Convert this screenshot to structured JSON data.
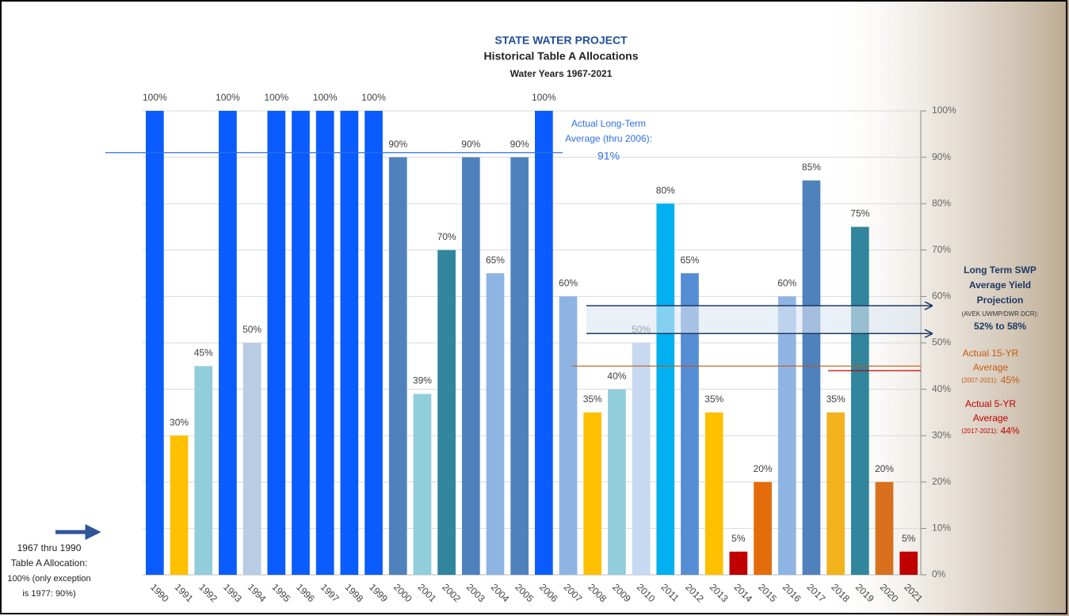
{
  "chart_data": {
    "type": "bar",
    "title": [
      "STATE WATER PROJECT",
      "Historical Table A Allocations",
      "Water Years 1967-2021"
    ],
    "categories": [
      "1990",
      "1991",
      "1992",
      "1993",
      "1994",
      "1995",
      "1996",
      "1997",
      "1998",
      "1999",
      "2000",
      "2001",
      "2002",
      "2003",
      "2004",
      "2005",
      "2006",
      "2007",
      "2008",
      "2009",
      "2010",
      "2011",
      "2012",
      "2013",
      "2014",
      "2015",
      "2016",
      "2017",
      "2018",
      "2019",
      "2020",
      "2021"
    ],
    "values": [
      100,
      30,
      45,
      100,
      50,
      100,
      100,
      100,
      100,
      100,
      90,
      39,
      70,
      90,
      65,
      90,
      100,
      60,
      35,
      40,
      50,
      80,
      65,
      35,
      5,
      20,
      60,
      85,
      35,
      75,
      20,
      5
    ],
    "value_labels": [
      "100%",
      "30%",
      "45%",
      "100%",
      "50%",
      "100%",
      null,
      "100%",
      null,
      "100%",
      "90%",
      "39%",
      "70%",
      "90%",
      "65%",
      "90%",
      "100%",
      "60%",
      "35%",
      "40%",
      "50%",
      "80%",
      "65%",
      "35%",
      "5%",
      "20%",
      "60%",
      "85%",
      "35%",
      "75%",
      "20%",
      "5%"
    ],
    "colors": [
      "#0a5cff",
      "#ffc000",
      "#92cddc",
      "#0a5cff",
      "#b8cce4",
      "#0a5cff",
      "#0a5cff",
      "#0a5cff",
      "#0a5cff",
      "#0a5cff",
      "#4f81bd",
      "#92cddc",
      "#31859c",
      "#4f81bd",
      "#8eb4e3",
      "#4f81bd",
      "#0a5cff",
      "#8eb4e3",
      "#ffc000",
      "#92cddc",
      "#c6d9f1",
      "#00b0f0",
      "#558ed5",
      "#ffc000",
      "#c00000",
      "#e46c0a",
      "#8eb4e3",
      "#4f81bd",
      "#f2b21c",
      "#31859c",
      "#d8701e",
      "#c00000"
    ],
    "ylim": [
      0,
      100
    ],
    "yticks": [
      {
        "value": 0,
        "label": "0%"
      },
      {
        "value": 10,
        "label": "10%"
      },
      {
        "value": 20,
        "label": "20%"
      },
      {
        "value": 30,
        "label": "30%"
      },
      {
        "value": 40,
        "label": "40%"
      },
      {
        "value": 50,
        "label": "50%"
      },
      {
        "value": 60,
        "label": "60%"
      },
      {
        "value": 70,
        "label": "70%"
      },
      {
        "value": 80,
        "label": "80%"
      },
      {
        "value": 90,
        "label": "90%"
      },
      {
        "value": 100,
        "label": "100%"
      }
    ],
    "grid": true,
    "annotations": {
      "long_term": {
        "lines": [
          "Actual Long-Term",
          "Average (thru 2006):"
        ],
        "label": "91%",
        "value": 91,
        "color": "#2f6fe8"
      },
      "projection": {
        "lines": [
          "Long Term SWP",
          "Average Yield",
          "Projection"
        ],
        "note": "(AVEK UWMP/DWR DCR):",
        "label": "52% to 58%",
        "range": [
          52,
          58
        ],
        "color": "#1f3864"
      },
      "avg15": {
        "lines": [
          "Actual 15-YR",
          "Average"
        ],
        "note": "(2007-2021):",
        "label": "45%",
        "value": 45,
        "color": "#c55a11"
      },
      "avg5": {
        "lines": [
          "Actual 5-YR",
          "Average"
        ],
        "note": "(2017-2021):",
        "label": "44%",
        "value": 44,
        "color": "#c00000"
      },
      "left_note": {
        "lines": [
          "1967 thru 1990",
          "Table A Allocation:",
          "100% (only exception",
          "is 1977: 90%)"
        ]
      }
    }
  }
}
